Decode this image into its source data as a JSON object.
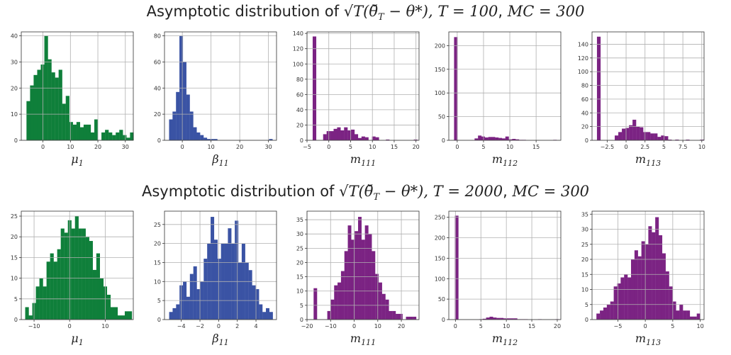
{
  "rows": [
    {
      "title_prefix": "Asymptotic distribution of ",
      "title_math": "√T(θ̆",
      "title_sub": "T",
      "title_rest": " − θ*), ",
      "title_T": "T = 100",
      "title_sep": ", ",
      "title_MC": "MC = 300"
    },
    {
      "title_prefix": "Asymptotic distribution of ",
      "title_math": "√T(θ̆",
      "title_sub": "T",
      "title_rest": " − θ*), ",
      "title_T": "T = 2000",
      "title_sep": ", ",
      "title_MC": "MC = 300"
    }
  ],
  "colors": {
    "green": "#0f7f3a",
    "blue": "#3a53a4",
    "purple": "#7b2383",
    "grid": "#b0b0b0"
  },
  "chart_data": [
    {
      "type": "bar",
      "title": "",
      "xlabel": "μ1",
      "xlabel_base": "μ",
      "xlabel_sub": "1",
      "color": "green",
      "grid": true,
      "xlim": [
        -7.9,
        32.9
      ],
      "ylim": [
        0,
        41.5
      ],
      "xticks": [
        0,
        10,
        20,
        30
      ],
      "yticks": [
        0,
        10,
        20,
        30,
        40
      ],
      "bin_start": -6.0,
      "bin_width": 1.3,
      "values": [
        15,
        21,
        25,
        27,
        29,
        40,
        31,
        26,
        24,
        27,
        14,
        17,
        7,
        6,
        7,
        5,
        6,
        6,
        3,
        8,
        0,
        3,
        4,
        3,
        2,
        3,
        4,
        2,
        1,
        3
      ]
    },
    {
      "type": "bar",
      "title": "",
      "xlabel": "β11",
      "xlabel_base": "β",
      "xlabel_sub": "11",
      "color": "blue",
      "grid": true,
      "xlim": [
        -6.2,
        32.8
      ],
      "ylim": [
        0,
        83
      ],
      "xticks": [
        0,
        10,
        20,
        30
      ],
      "yticks": [
        0,
        20,
        40,
        60,
        80
      ],
      "bin_start": -4.6,
      "bin_width": 1.2,
      "values": [
        16,
        22,
        37,
        80,
        60,
        35,
        22,
        10,
        6,
        4,
        2,
        1,
        1,
        1,
        0,
        0,
        0,
        0,
        0,
        0,
        0,
        0,
        0,
        0,
        0,
        0,
        0,
        0,
        0,
        1
      ]
    },
    {
      "type": "bar",
      "title": "",
      "xlabel": "m111",
      "xlabel_base": "m",
      "xlabel_sub": "111",
      "color": "purple",
      "grid": true,
      "xlim": [
        -5,
        20.7
      ],
      "ylim": [
        0,
        142
      ],
      "xticks": [
        -5,
        0,
        5,
        10,
        15,
        20
      ],
      "yticks": [
        0,
        20,
        40,
        60,
        80,
        100,
        120,
        140
      ],
      "bin_start": -3.7,
      "bin_width": 0.8,
      "values": [
        136,
        0,
        0,
        8,
        12,
        12,
        15,
        17,
        13,
        17,
        13,
        14,
        8,
        3,
        5,
        4,
        0,
        5,
        4,
        0,
        0,
        1,
        0,
        0,
        0,
        0,
        0,
        0,
        0,
        1
      ]
    },
    {
      "type": "bar",
      "title": "",
      "xlabel": "m112",
      "xlabel_base": "m",
      "xlabel_sub": "112",
      "color": "purple",
      "grid": true,
      "xlim": [
        -1.6,
        19.7
      ],
      "ylim": [
        0,
        229
      ],
      "xticks": [
        0,
        5,
        10,
        15
      ],
      "yticks": [
        0,
        50,
        100,
        150,
        200
      ],
      "bin_start": -0.6,
      "bin_width": 0.65,
      "values": [
        218,
        0,
        0,
        0,
        0,
        0,
        4,
        10,
        8,
        6,
        7,
        7,
        6,
        5,
        4,
        8,
        2,
        3,
        2,
        1,
        1,
        0,
        0,
        0,
        0,
        0,
        0,
        0,
        0,
        1
      ]
    },
    {
      "type": "bar",
      "title": "",
      "xlabel": "m113",
      "xlabel_base": "m",
      "xlabel_sub": "113",
      "color": "purple",
      "grid": true,
      "xlim": [
        -4.5,
        10.3
      ],
      "ylim": [
        0,
        158
      ],
      "xticks": [
        -2.5,
        0.0,
        2.5,
        5.0,
        7.5,
        10.0
      ],
      "yticks": [
        0,
        20,
        40,
        60,
        80,
        100,
        120,
        140
      ],
      "bin_start": -3.85,
      "bin_width": 0.47,
      "values": [
        151,
        0,
        0,
        0,
        0,
        7,
        12,
        17,
        18,
        22,
        30,
        20,
        19,
        12,
        12,
        10,
        10,
        5,
        7,
        6,
        1,
        0,
        1,
        0,
        0,
        1,
        0,
        0,
        0,
        1
      ]
    },
    {
      "type": "bar",
      "title": "",
      "xlabel": "μ1",
      "xlabel_base": "μ",
      "xlabel_sub": "1",
      "color": "green",
      "grid": true,
      "xlim": [
        -13.6,
        17.9
      ],
      "ylim": [
        0,
        26.2
      ],
      "xticks": [
        -10,
        0,
        10
      ],
      "yticks": [
        0,
        5,
        10,
        15,
        20,
        25
      ],
      "bin_start": -12.5,
      "bin_width": 1.0,
      "values": [
        3,
        1,
        4,
        8,
        10,
        8,
        14,
        16,
        14,
        17,
        22,
        21,
        24,
        22,
        25,
        22,
        22,
        20,
        19,
        12,
        16,
        10,
        8,
        6,
        3,
        3,
        1,
        1,
        2,
        2
      ]
    },
    {
      "type": "bar",
      "title": "",
      "xlabel": "β11",
      "xlabel_base": "β",
      "xlabel_sub": "11",
      "color": "blue",
      "grid": true,
      "xlim": [
        -5.8,
        6.2
      ],
      "ylim": [
        0,
        28.5
      ],
      "xticks": [
        -4,
        -2,
        0,
        2,
        4
      ],
      "yticks": [
        0,
        5,
        10,
        15,
        20,
        25
      ],
      "bin_start": -5.3,
      "bin_width": 0.37,
      "values": [
        2,
        3,
        4,
        9,
        10,
        6,
        12,
        14,
        8,
        10,
        16,
        20,
        27,
        21,
        16,
        20,
        20,
        24,
        20,
        26,
        15,
        20,
        15,
        13,
        9,
        8,
        4,
        2,
        3,
        2
      ]
    },
    {
      "type": "bar",
      "title": "",
      "xlabel": "m111",
      "xlabel_base": "m",
      "xlabel_sub": "111",
      "color": "purple",
      "grid": true,
      "xlim": [
        -20,
        27.5
      ],
      "ylim": [
        0,
        38
      ],
      "xticks": [
        -20,
        -10,
        0,
        10,
        20
      ],
      "yticks": [
        0,
        5,
        10,
        15,
        20,
        25,
        30,
        35
      ],
      "bin_start": -17.2,
      "bin_width": 1.45,
      "values": [
        11,
        0,
        0,
        0,
        3,
        7,
        12,
        13,
        17,
        24,
        33,
        28,
        31,
        36,
        28,
        33,
        30,
        24,
        16,
        13,
        9,
        7,
        3,
        3,
        2,
        2,
        0,
        1,
        1,
        1
      ]
    },
    {
      "type": "bar",
      "title": "",
      "xlabel": "m112",
      "xlabel_base": "m",
      "xlabel_sub": "112",
      "color": "purple",
      "grid": true,
      "xlim": [
        -1.3,
        20.7
      ],
      "ylim": [
        0,
        265
      ],
      "xticks": [
        0,
        5,
        10,
        15,
        20
      ],
      "yticks": [
        0,
        50,
        100,
        150,
        200,
        250
      ],
      "bin_start": -0.1,
      "bin_width": 0.68,
      "values": [
        254,
        0,
        0,
        0,
        0,
        0,
        0,
        1,
        2,
        5,
        7,
        5,
        4,
        4,
        3,
        3,
        3,
        3,
        1,
        1,
        1,
        0,
        0,
        0,
        1,
        0,
        0,
        0,
        0,
        1
      ]
    },
    {
      "type": "bar",
      "title": "",
      "xlabel": "m113",
      "xlabel_base": "m",
      "xlabel_sub": "113",
      "color": "purple",
      "grid": true,
      "xlim": [
        -9.7,
        10.7
      ],
      "ylim": [
        0,
        36
      ],
      "xticks": [
        -5,
        0,
        5,
        10
      ],
      "yticks": [
        0,
        5,
        10,
        15,
        20,
        25,
        30,
        35
      ],
      "bin_start": -8.9,
      "bin_width": 0.63,
      "values": [
        2,
        3,
        4,
        5,
        6,
        11,
        12,
        14,
        15,
        14,
        20,
        23,
        21,
        26,
        25,
        31,
        29,
        34,
        28,
        22,
        16,
        11,
        6,
        3,
        5,
        3,
        3,
        1,
        1,
        2
      ]
    }
  ]
}
